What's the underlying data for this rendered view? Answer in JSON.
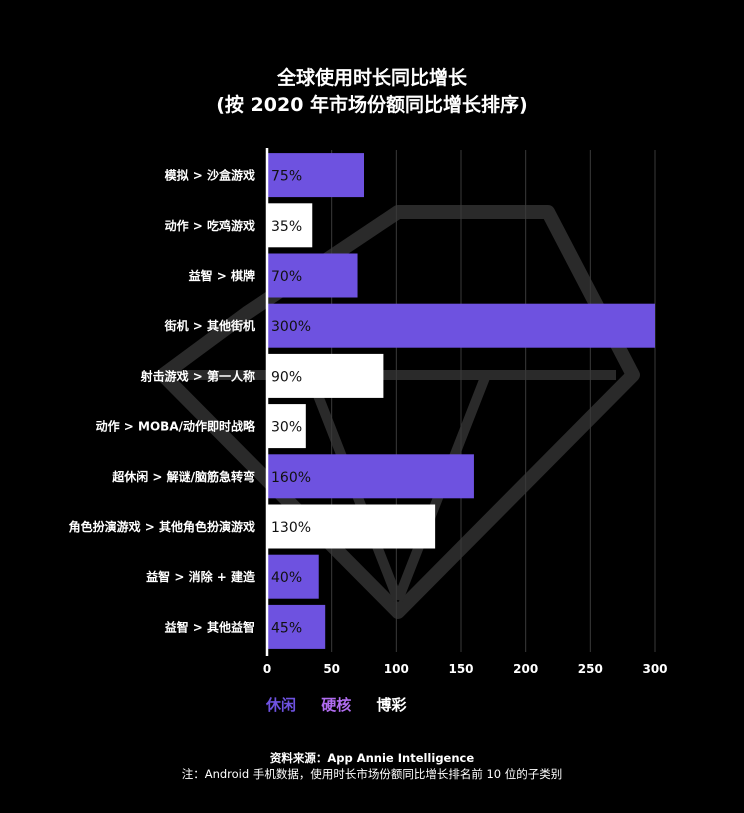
{
  "colors": {
    "background": "#000000",
    "casual": "#6e52e0",
    "midcore": "#b06cf0",
    "casino": "#ffffff",
    "grid": "#3a3a3a",
    "watermark": "#2a2a2a"
  },
  "chart_data": {
    "type": "bar",
    "orientation": "horizontal",
    "title": "全球使用时长同比增长",
    "subtitle": "(按 2020 年市场份额同比增长排序)",
    "categories": [
      "模拟 > 沙盒游戏",
      "动作 > 吃鸡游戏",
      "益智 > 棋牌",
      "街机 > 其他街机",
      "射击游戏 > 第一人称",
      "动作 > MOBA/动作即时战略",
      "超休闲 > 解谜/脑筋急转弯",
      "角色扮演游戏 > 其他角色扮演游戏",
      "益智 > 消除 + 建造",
      "益智 > 其他益智"
    ],
    "values": [
      75,
      35,
      70,
      300,
      90,
      30,
      160,
      130,
      40,
      45
    ],
    "data_labels": [
      "75%",
      "35%",
      "70%",
      "300%",
      "90%",
      "30%",
      "160%",
      "130%",
      "40%",
      "45%"
    ],
    "group": [
      "休闲",
      "博彩",
      "休闲",
      "休闲",
      "博彩",
      "博彩",
      "休闲",
      "博彩",
      "休闲",
      "休闲"
    ],
    "xlim": [
      0,
      300
    ],
    "xticks": [
      0,
      50,
      100,
      150,
      200,
      250,
      300
    ],
    "grid": true,
    "legend": [
      {
        "name": "休闲",
        "color": "#6e52e0"
      },
      {
        "name": "硬核",
        "color": "#b06cf0"
      },
      {
        "name": "博彩",
        "color": "#ffffff"
      }
    ],
    "legend_position": "bottom-left"
  },
  "notes": {
    "source": "资料来源：App Annie Intelligence",
    "footnote": "注：Android 手机数据，使用时长市场份额同比增长排名前 10 位的子类别"
  }
}
